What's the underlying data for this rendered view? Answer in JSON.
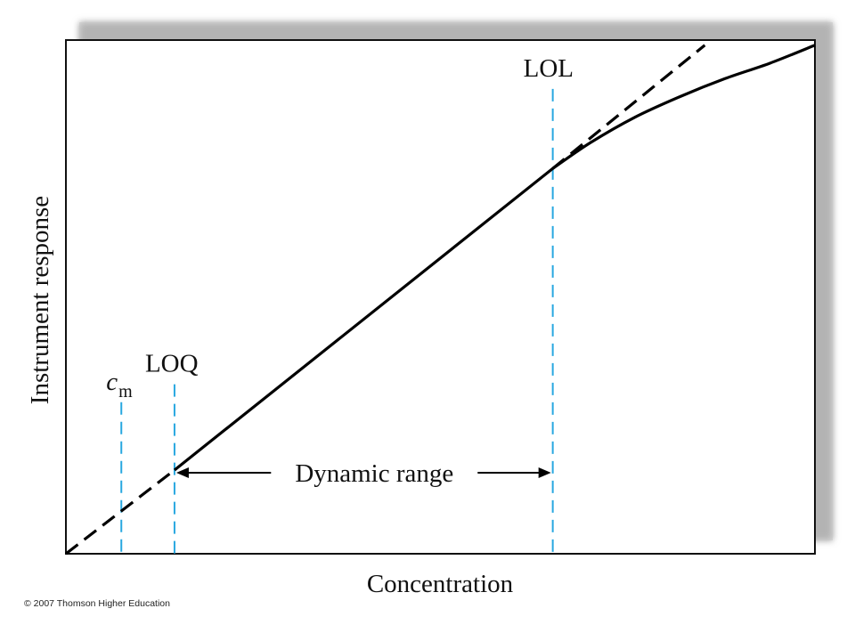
{
  "chart_data": {
    "type": "line",
    "title": "",
    "xlabel": "Concentration",
    "ylabel": "Instrument response",
    "grid": false,
    "xlim": [
      0,
      1
    ],
    "ylim": [
      0,
      1
    ],
    "series": [
      {
        "style": "solid",
        "points": [
          [
            0.145,
            0.163
          ],
          [
            0.65,
            0.75
          ],
          [
            0.7,
            0.8
          ],
          [
            0.76,
            0.85
          ],
          [
            0.82,
            0.89
          ],
          [
            0.88,
            0.925
          ],
          [
            0.94,
            0.955
          ],
          [
            1.0,
            0.99
          ]
        ]
      },
      {
        "style": "dashed",
        "points": [
          [
            0.0,
            0.0
          ],
          [
            0.145,
            0.163
          ]
        ]
      },
      {
        "style": "dashed",
        "points": [
          [
            0.65,
            0.75
          ],
          [
            0.853,
            0.99
          ]
        ]
      }
    ],
    "markers": [
      {
        "x": 0.074,
        "ymax": 0.295,
        "label": "c",
        "subscript": "m"
      },
      {
        "x": 0.145,
        "ymax": 0.33,
        "label": "LOQ"
      },
      {
        "x": 0.65,
        "ymax": 0.905,
        "label": "LOL"
      }
    ],
    "annotation": {
      "text": "Dynamic range",
      "from": 0.145,
      "to": 0.65,
      "y": 0.163
    },
    "colors": {
      "axes": "#111111",
      "curve": "#000000",
      "marker": "#29a8e0",
      "shadow": "#9a9a9a"
    }
  },
  "footer": {
    "copyright": "© 2007 Thomson Higher Education"
  }
}
